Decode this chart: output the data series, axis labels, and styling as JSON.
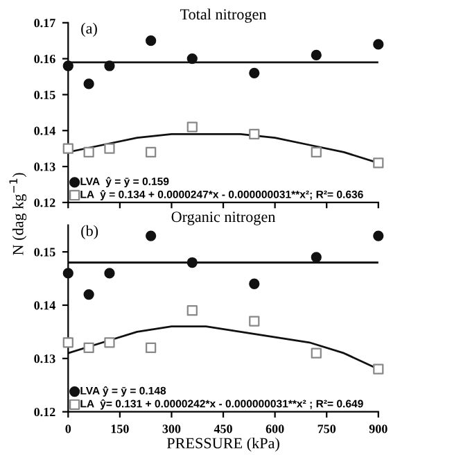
{
  "chart_data": [
    {
      "type": "scatter",
      "title": "Total nitrogen",
      "ylabel": "N (dag kg$^{−1}$)",
      "annotations": [
        "(a)"
      ],
      "x": [
        0,
        60,
        120,
        240,
        360,
        540,
        720,
        900
      ],
      "xlim": [
        0,
        900
      ],
      "xticks": [
        0,
        150,
        300,
        450,
        600,
        750,
        900
      ],
      "ylim": [
        0.12,
        0.17
      ],
      "yticks": [
        0.12,
        0.13,
        0.14,
        0.15,
        0.16,
        0.17
      ],
      "tick_labels": "y",
      "grid": false,
      "legend": "bottom left",
      "series": [
        {
          "name": "LVA  ŷ = ȳ = 0.159",
          "color": "#111111",
          "marker": "circle",
          "values": [
            0.158,
            0.153,
            0.158,
            0.165,
            0.16,
            0.156,
            0.161,
            0.164
          ]
        },
        {
          "name": "LA  ŷ = 0.134 + 0.0000247*x - 0.000000031**x²; R²= 0.636",
          "color": "#ffffff",
          "marker": "square",
          "values": [
            0.135,
            0.134,
            0.135,
            0.134,
            0.141,
            0.139,
            0.134,
            0.131
          ]
        },
        {
          "type": "line",
          "color": "#111111",
          "x": [
            0,
            900
          ],
          "values": [
            0.159,
            0.159
          ]
        },
        {
          "type": "line",
          "color": "#111111",
          "x": [
            0,
            100,
            200,
            300,
            400,
            500,
            600,
            700,
            800,
            900
          ],
          "values": [
            0.134,
            0.136,
            0.138,
            0.139,
            0.139,
            0.139,
            0.138,
            0.136,
            0.134,
            0.131
          ]
        }
      ]
    },
    {
      "type": "scatter",
      "title": "Organic nitrogen",
      "xlabel": "PRESSURE (kPa)",
      "annotations": [
        "(b)"
      ],
      "x": [
        0,
        60,
        120,
        240,
        360,
        540,
        720,
        900
      ],
      "xlim": [
        0,
        900
      ],
      "xticks": [
        0,
        150,
        300,
        450,
        600,
        750,
        900
      ],
      "ylim": [
        0.12,
        0.155
      ],
      "yticks": [
        0.12,
        0.13,
        0.14,
        0.15
      ],
      "grid": false,
      "legend": "bottom left",
      "series": [
        {
          "name": "LVA ŷ = ȳ = 0.148",
          "color": "#111111",
          "marker": "circle",
          "values": [
            0.146,
            0.142,
            0.146,
            0.153,
            0.148,
            0.144,
            0.149,
            0.153
          ]
        },
        {
          "name": "LA  ŷ= 0.131 + 0.0000242*x - 0.000000031**x² ; R²= 0.649",
          "color": "#ffffff",
          "marker": "square",
          "values": [
            0.133,
            0.132,
            0.133,
            0.132,
            0.139,
            0.137,
            0.131,
            0.128
          ]
        },
        {
          "type": "line",
          "color": "#111111",
          "x": [
            0,
            900
          ],
          "values": [
            0.148,
            0.148
          ]
        },
        {
          "type": "line",
          "color": "#111111",
          "x": [
            0,
            100,
            200,
            300,
            400,
            500,
            600,
            700,
            800,
            900
          ],
          "values": [
            0.131,
            0.133,
            0.135,
            0.136,
            0.136,
            0.135,
            0.134,
            0.133,
            0.131,
            0.128
          ]
        }
      ]
    }
  ]
}
